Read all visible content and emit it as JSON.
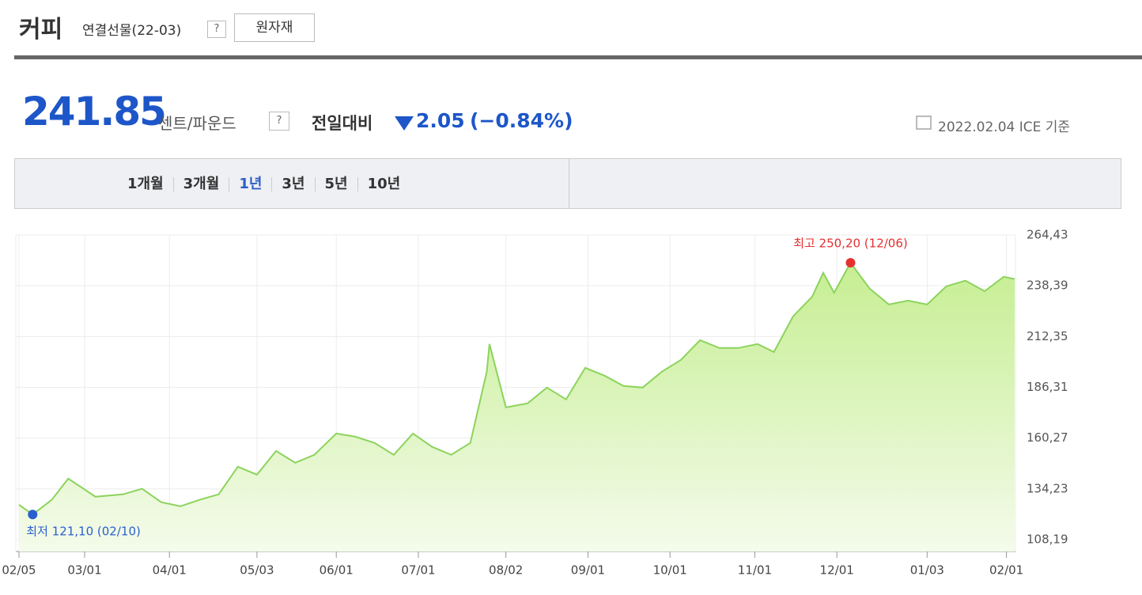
{
  "header": {
    "title": "커피",
    "subtitle": "연결선물(22-03)",
    "help": "?",
    "button": "원자재"
  },
  "quote": {
    "price": "241.85",
    "unit": "센트/파운드",
    "help": "?",
    "change_label": "전일대비",
    "change": "2.05",
    "change_pct": "(−0.84%)",
    "date": "2022.02.04 ICE 기준"
  },
  "tabs": [
    "1개월",
    "3개월",
    "1년",
    "3년",
    "5년",
    "10년"
  ],
  "selected_tab": "1년",
  "chart_data": {
    "type": "area",
    "x": [
      "02/05",
      "02/10",
      "02/17",
      "02/23",
      "03/05",
      "03/15",
      "03/22",
      "03/29",
      "04/05",
      "04/12",
      "04/19",
      "04/26",
      "05/03",
      "05/10",
      "05/17",
      "05/24",
      "06/01",
      "06/08",
      "06/15",
      "06/22",
      "06/29",
      "07/06",
      "07/13",
      "07/20",
      "07/26",
      "07/27",
      "08/02",
      "08/10",
      "08/17",
      "08/24",
      "08/31",
      "09/07",
      "09/14",
      "09/21",
      "09/28",
      "10/05",
      "10/12",
      "10/19",
      "10/26",
      "11/02",
      "11/08",
      "11/15",
      "11/22",
      "11/26",
      "11/30",
      "12/06",
      "12/13",
      "12/20",
      "12/27",
      "01/03",
      "01/10",
      "01/17",
      "01/24",
      "01/31",
      "02/04"
    ],
    "series": [
      {
        "name": "커피",
        "color": "#8cd35c",
        "values": [
          126.1,
          121.1,
          128.6,
          139.5,
          130.2,
          131.4,
          134.3,
          127.4,
          125.3,
          128.6,
          131.4,
          145.6,
          141.5,
          153.7,
          147.6,
          151.7,
          162.6,
          161,
          157.8,
          151.7,
          162.6,
          155.8,
          151.7,
          157.8,
          194.3,
          208.5,
          176,
          178.1,
          186.2,
          180.1,
          196.3,
          192.3,
          187,
          186.2,
          194.3,
          200.4,
          210.5,
          206.5,
          206.5,
          208.5,
          204.4,
          222.7,
          232.8,
          245,
          234.8,
          250.2,
          236.9,
          228.8,
          230.8,
          228.8,
          238.1,
          241,
          235.6,
          243,
          241.85
        ]
      }
    ],
    "annotations": {
      "min": "최저 121,10 (02/10)",
      "max": "최고 250,20 (12/06)"
    },
    "ylim": [
      102.11,
      264.43
    ],
    "yticks": [
      {
        "value": 108.19,
        "label": "108,19"
      },
      {
        "value": 134.23,
        "label": "134,23"
      },
      {
        "value": 160.27,
        "label": "160,27"
      },
      {
        "value": 186.31,
        "label": "186,31"
      },
      {
        "value": 212.35,
        "label": "212,35"
      },
      {
        "value": 238.39,
        "label": "238,39"
      },
      {
        "value": 264.43,
        "label": "264,43"
      }
    ],
    "xticks": [
      "02/05",
      "03/01",
      "04/01",
      "05/03",
      "06/01",
      "07/01",
      "08/02",
      "09/01",
      "10/01",
      "11/01",
      "12/01",
      "01/03",
      "02/01"
    ],
    "grid": true
  }
}
